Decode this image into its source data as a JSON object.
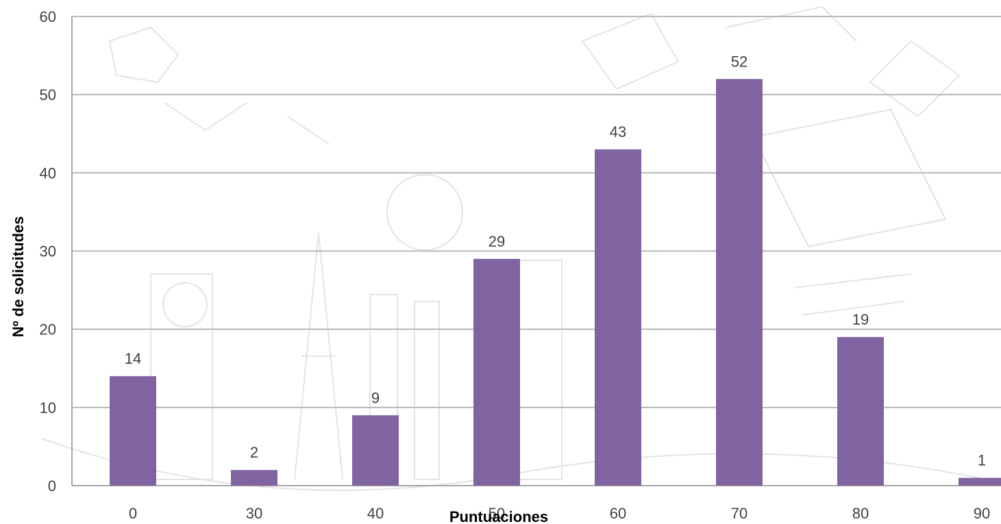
{
  "chart_data": {
    "type": "bar",
    "categories": [
      "0",
      "30",
      "40",
      "50",
      "60",
      "70",
      "80",
      "90"
    ],
    "values": [
      14,
      2,
      9,
      29,
      43,
      52,
      19,
      1
    ],
    "xlabel": "Puntuaciones",
    "ylabel": "Nº de solicitudes",
    "ylim": [
      0,
      60
    ],
    "yticks": [
      0,
      10,
      20,
      30,
      40,
      50,
      60
    ],
    "bar_color": "#8064a2",
    "grid": true,
    "data_labels": true,
    "legend": "none"
  }
}
